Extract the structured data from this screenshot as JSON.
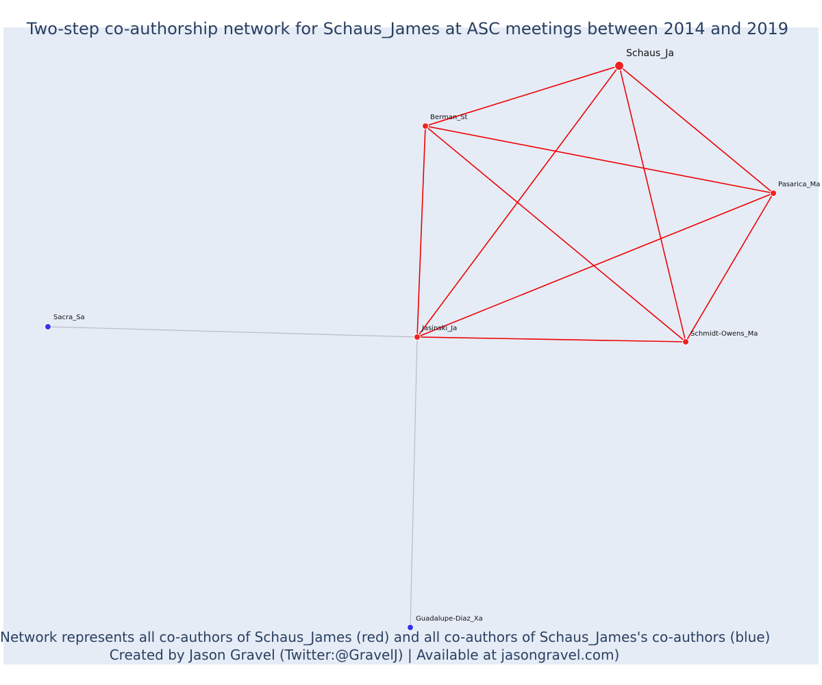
{
  "title": "Two-step co-authorship network for Schaus_James at ASC meetings between 2014 and 2019",
  "caption": {
    "line1": "Network represents all co-authors of Schaus_James (red) and all co-authors of Schaus_James's co-authors (blue)",
    "line2": "Created by Jason Gravel (Twitter:@GravelJ) | Available at jasongravel.com)"
  },
  "colors": {
    "plot_background": "#e5ecf6",
    "coauthor_node": "#ee2222",
    "second_step_node": "#3333ee",
    "coauthor_edge": "#ee0000",
    "second_step_edge": "#b8bcc8"
  },
  "nodes": [
    {
      "id": "Schaus_Ja",
      "label": "Schaus_Ja",
      "group": "focal"
    },
    {
      "id": "Berman_St",
      "label": "Berman_St",
      "group": "coauthor"
    },
    {
      "id": "Pasarica_Ma",
      "label": "Pasarica_Ma",
      "group": "coauthor"
    },
    {
      "id": "Jasinski_Ja",
      "label": "Jasinski_Ja",
      "group": "coauthor"
    },
    {
      "id": "Schmidt-Owens_Ma",
      "label": "Schmidt-Owens_Ma",
      "group": "coauthor"
    },
    {
      "id": "Sacra_Sa",
      "label": "Sacra_Sa",
      "group": "second_step"
    },
    {
      "id": "Guadalupe-Diaz_Xa",
      "label": "Guadalupe-Diaz_Xa",
      "group": "second_step"
    }
  ],
  "edges": [
    {
      "source": "Schaus_Ja",
      "target": "Berman_St",
      "group": "coauthor"
    },
    {
      "source": "Schaus_Ja",
      "target": "Pasarica_Ma",
      "group": "coauthor"
    },
    {
      "source": "Schaus_Ja",
      "target": "Jasinski_Ja",
      "group": "coauthor"
    },
    {
      "source": "Schaus_Ja",
      "target": "Schmidt-Owens_Ma",
      "group": "coauthor"
    },
    {
      "source": "Berman_St",
      "target": "Pasarica_Ma",
      "group": "coauthor"
    },
    {
      "source": "Berman_St",
      "target": "Jasinski_Ja",
      "group": "coauthor"
    },
    {
      "source": "Berman_St",
      "target": "Schmidt-Owens_Ma",
      "group": "coauthor"
    },
    {
      "source": "Pasarica_Ma",
      "target": "Jasinski_Ja",
      "group": "coauthor"
    },
    {
      "source": "Pasarica_Ma",
      "target": "Schmidt-Owens_Ma",
      "group": "coauthor"
    },
    {
      "source": "Jasinski_Ja",
      "target": "Schmidt-Owens_Ma",
      "group": "coauthor"
    },
    {
      "source": "Jasinski_Ja",
      "target": "Sacra_Sa",
      "group": "second_step"
    },
    {
      "source": "Jasinski_Ja",
      "target": "Guadalupe-Diaz_Xa",
      "group": "second_step"
    }
  ]
}
